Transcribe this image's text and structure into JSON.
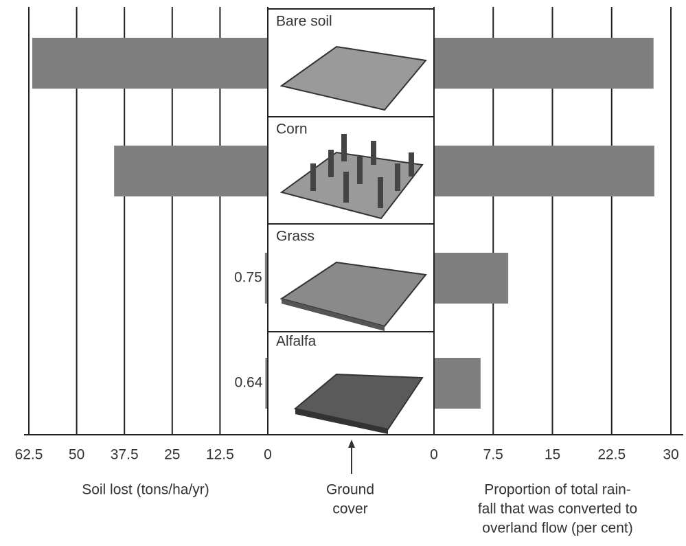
{
  "chart_data": [
    {
      "type": "bar",
      "orientation": "horizontal",
      "direction": "reversed",
      "xlabel": "Soil lost (tons/ha/yr)",
      "ylabel": [
        "Ground",
        "cover"
      ],
      "categories": [
        "Bare soil",
        "Corn",
        "Grass",
        "Alfalfa"
      ],
      "values": [
        61.6,
        40.2,
        0.75,
        0.64
      ],
      "value_labels": [
        null,
        null,
        "0.75",
        "0.64"
      ],
      "xlim": [
        0,
        62.5
      ],
      "xticks": [
        0,
        12.5,
        25,
        37.5,
        50,
        62.5
      ],
      "color": "#7f7f7f",
      "grid": true
    },
    {
      "type": "bar",
      "orientation": "horizontal",
      "direction": "normal",
      "xlabel": [
        "Proportion of total rain-",
        "fall that was converted to",
        "overland flow (per cent)"
      ],
      "values": [
        27.8,
        27.9,
        9.4,
        5.9
      ],
      "xlim": [
        0,
        30
      ],
      "xticks": [
        0,
        7.5,
        15,
        22.5,
        30
      ],
      "color": "#7f7f7f",
      "grid": true
    }
  ]
}
